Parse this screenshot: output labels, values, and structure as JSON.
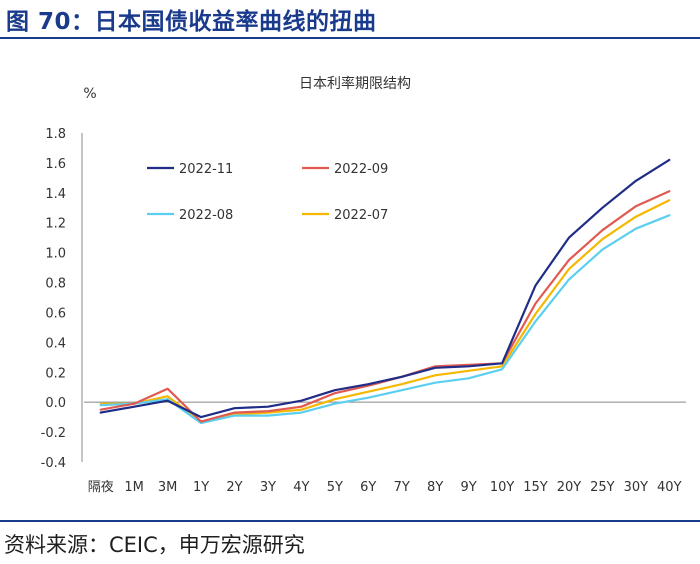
{
  "figure_title": "图 70：日本国债收益率曲线的扭曲",
  "source": "资料来源：CEIC，申万宏源研究",
  "chart_data": {
    "type": "line",
    "title": "日本利率期限结构",
    "ylabel": "%",
    "xlabel": "",
    "categories": [
      "隔夜",
      "1M",
      "3M",
      "1Y",
      "2Y",
      "3Y",
      "4Y",
      "5Y",
      "6Y",
      "7Y",
      "8Y",
      "9Y",
      "10Y",
      "15Y",
      "20Y",
      "25Y",
      "30Y",
      "40Y"
    ],
    "ylim": [
      -0.4,
      1.8
    ],
    "yticks": [
      -0.4,
      -0.2,
      0.0,
      0.2,
      0.4,
      0.6,
      0.8,
      1.0,
      1.2,
      1.4,
      1.6,
      1.8
    ],
    "ytick_labels": [
      "-0.4",
      "-0.2",
      "0.0",
      "0.2",
      "0.4",
      "0.6",
      "0.8",
      "1.0",
      "1.2",
      "1.4",
      "1.6",
      "1.8"
    ],
    "grid": false,
    "legend_position": "top-left",
    "series": [
      {
        "name": "2022-11",
        "color": "#1f2d86",
        "values": [
          -0.07,
          -0.03,
          0.01,
          -0.1,
          -0.04,
          -0.03,
          0.01,
          0.08,
          0.12,
          0.17,
          0.23,
          0.24,
          0.26,
          0.78,
          1.1,
          1.3,
          1.48,
          1.62
        ]
      },
      {
        "name": "2022-09",
        "color": "#e05a52",
        "values": [
          -0.05,
          -0.01,
          0.09,
          -0.13,
          -0.07,
          -0.06,
          -0.03,
          0.06,
          0.11,
          0.17,
          0.24,
          0.25,
          0.26,
          0.66,
          0.95,
          1.15,
          1.31,
          1.41
        ]
      },
      {
        "name": "2022-08",
        "color": "#5ccff0",
        "values": [
          -0.02,
          -0.01,
          0.02,
          -0.14,
          -0.09,
          -0.09,
          -0.07,
          -0.01,
          0.03,
          0.08,
          0.13,
          0.16,
          0.22,
          0.54,
          0.82,
          1.02,
          1.16,
          1.25
        ]
      },
      {
        "name": "2022-07",
        "color": "#f5b800",
        "values": [
          -0.01,
          -0.01,
          0.04,
          -0.13,
          -0.08,
          -0.07,
          -0.05,
          0.02,
          0.07,
          0.12,
          0.18,
          0.21,
          0.24,
          0.59,
          0.89,
          1.09,
          1.24,
          1.35
        ]
      }
    ]
  }
}
